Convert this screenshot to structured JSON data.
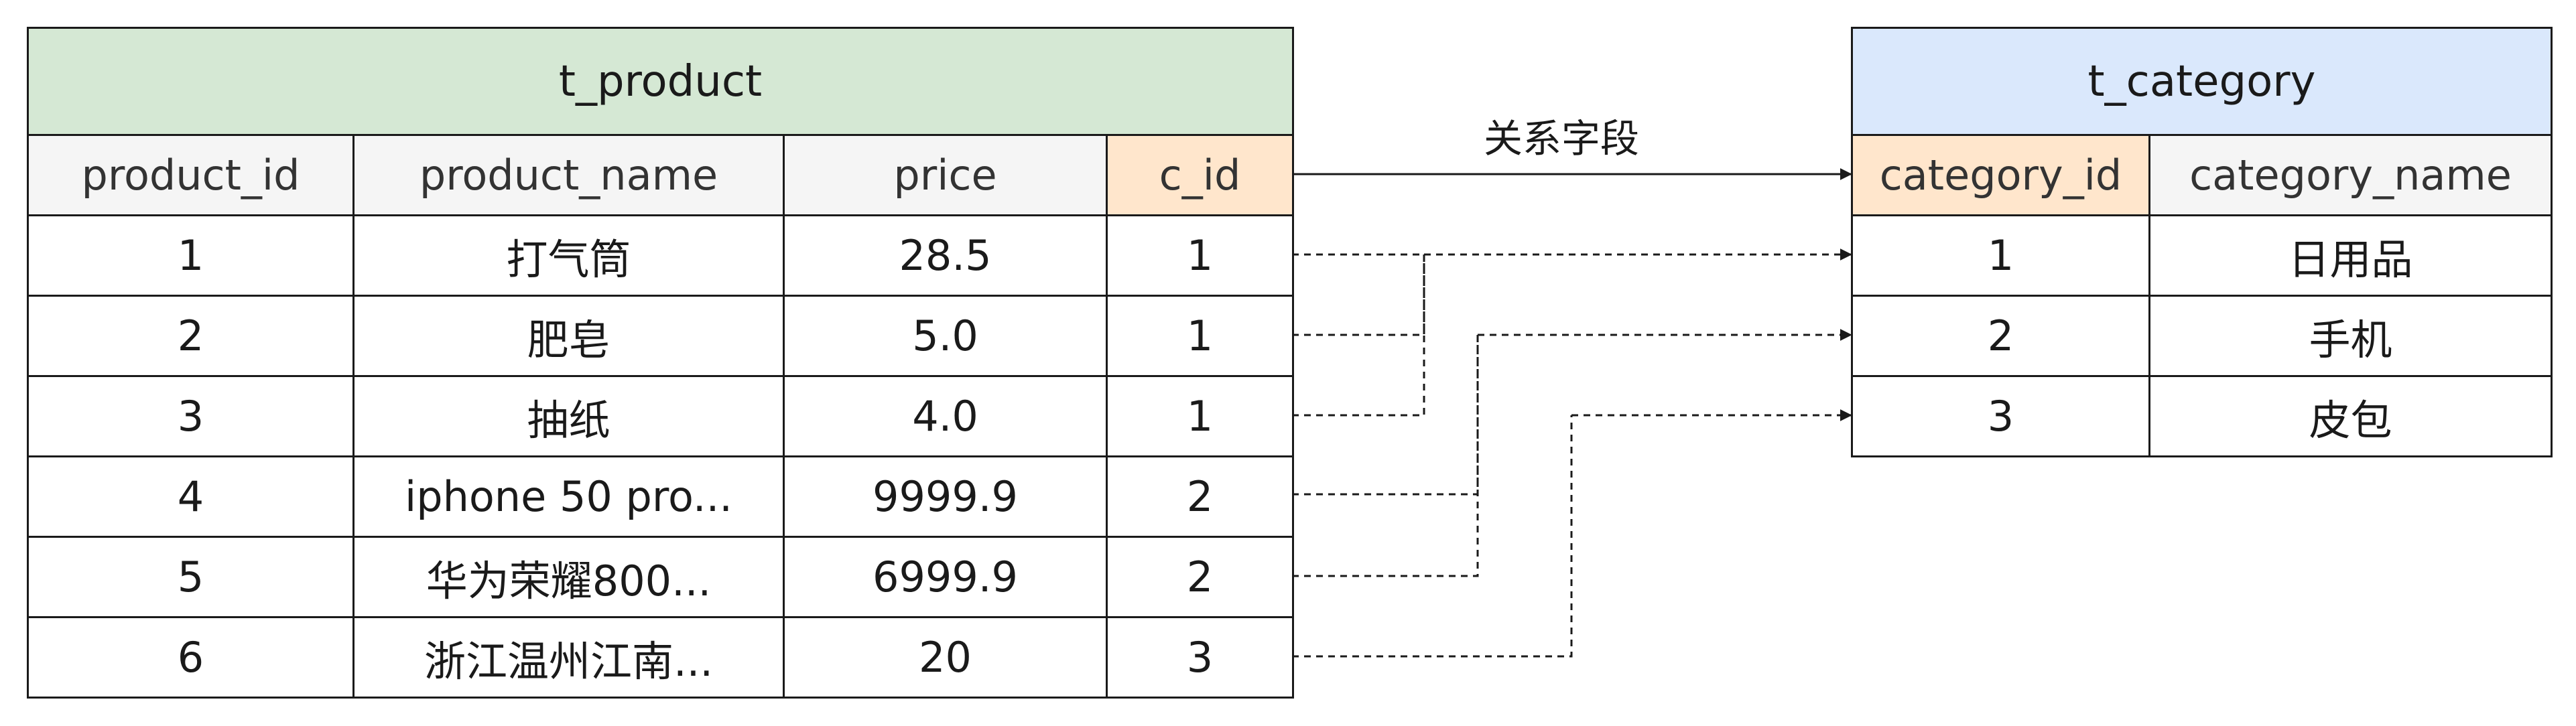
{
  "colors": {
    "product_title_bg": "#d5e8d4",
    "category_title_bg": "#dae8fc",
    "key_field_bg": "#ffe6cc",
    "header_bg": "#f5f5f5",
    "line": "#1a1a1a"
  },
  "product_table": {
    "title": "t_product",
    "columns": [
      "product_id",
      "product_name",
      "price",
      "c_id"
    ],
    "rows": [
      [
        "1",
        "打气筒",
        "28.5",
        "1"
      ],
      [
        "2",
        "肥皂",
        "5.0",
        "1"
      ],
      [
        "3",
        "抽纸",
        "4.0",
        "1"
      ],
      [
        "4",
        "iphone 50 pro...",
        "9999.9",
        "2"
      ],
      [
        "5",
        "华为荣耀800...",
        "6999.9",
        "2"
      ],
      [
        "6",
        "浙江温州江南...",
        "20",
        "3"
      ]
    ]
  },
  "category_table": {
    "title": "t_category",
    "columns": [
      "category_id",
      "category_name"
    ],
    "rows": [
      [
        "1",
        "日用品"
      ],
      [
        "2",
        "手机"
      ],
      [
        "3",
        "皮包"
      ]
    ]
  },
  "relation": {
    "label": "关系字段",
    "from_field": "c_id",
    "to_field": "category_id"
  }
}
